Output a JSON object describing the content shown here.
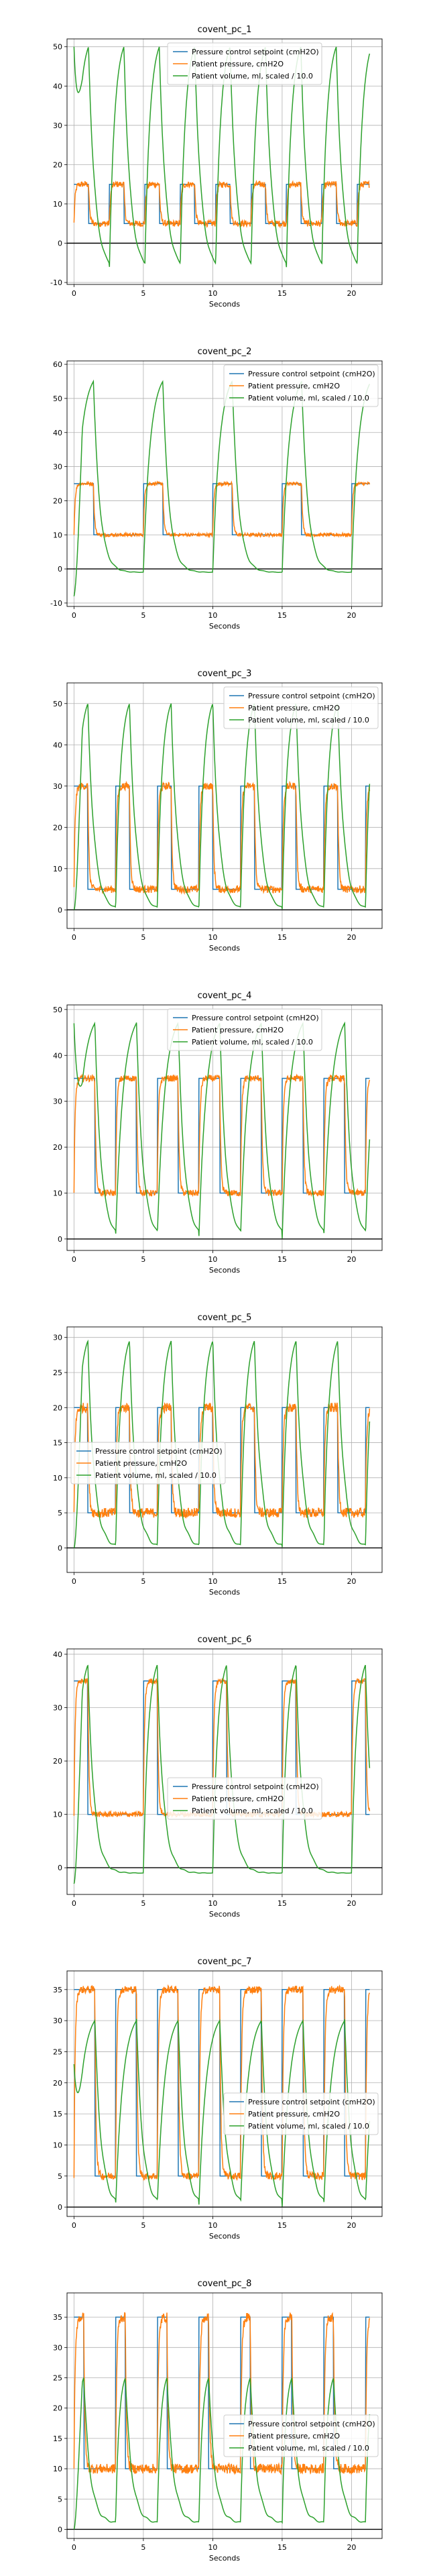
{
  "colors": {
    "setpoint": "#1f77b4",
    "pressure": "#ff7f0e",
    "volume": "#2ca02c"
  },
  "legend_labels": {
    "setpoint": "Pressure control setpoint (cmH2O)",
    "pressure": "Patient pressure, cmH2O",
    "volume": "Patient volume, ml, scaled / 10.0"
  },
  "chart_data": [
    {
      "type": "line",
      "title": "covent_pc_1",
      "xlabel": "Seconds",
      "ylabel": "",
      "xlim": [
        -0.5,
        22.2
      ],
      "ylim": [
        -10.5,
        52
      ],
      "xticks": [
        0,
        5,
        10,
        15,
        20
      ],
      "yticks": [
        -10,
        0,
        10,
        20,
        30,
        40,
        50
      ],
      "grid": true,
      "legend": "top-center",
      "duration": 21.3,
      "period": 2.55,
      "insp": 1.05,
      "peep": 5,
      "pip": 15,
      "vol_base": -7,
      "vol_peak": 50,
      "vol_start": 50,
      "noise": 0.8,
      "series": [
        {
          "key": "setpoint",
          "name": "Pressure control setpoint (cmH2O)"
        },
        {
          "key": "pressure",
          "name": "Patient pressure, cmH2O"
        },
        {
          "key": "volume",
          "name": "Patient volume, ml, scaled / 10.0"
        }
      ]
    },
    {
      "type": "line",
      "title": "covent_pc_2",
      "xlabel": "Seconds",
      "ylabel": "",
      "xlim": [
        -0.5,
        22.2
      ],
      "ylim": [
        -11,
        61
      ],
      "xticks": [
        0,
        5,
        10,
        15,
        20
      ],
      "yticks": [
        -10,
        0,
        10,
        20,
        30,
        40,
        50,
        60
      ],
      "grid": true,
      "legend": "top-right",
      "duration": 21.3,
      "period": 5.0,
      "insp": 1.4,
      "peep": 10,
      "pip": 25,
      "vol_base": -1,
      "vol_peak": 55,
      "vol_start": -8,
      "noise": 0.5,
      "series": [
        {
          "key": "setpoint",
          "name": "Pressure control setpoint (cmH2O)"
        },
        {
          "key": "pressure",
          "name": "Patient pressure, cmH2O"
        },
        {
          "key": "volume",
          "name": "Patient volume, ml, scaled / 10.0"
        }
      ]
    },
    {
      "type": "line",
      "title": "covent_pc_3",
      "xlabel": "Seconds",
      "ylabel": "",
      "xlim": [
        -0.5,
        22.2
      ],
      "ylim": [
        -4.5,
        55
      ],
      "xticks": [
        0,
        5,
        10,
        15,
        20
      ],
      "yticks": [
        0,
        10,
        20,
        30,
        40,
        50
      ],
      "grid": true,
      "legend": "top-right",
      "duration": 21.3,
      "period": 3.0,
      "insp": 1.0,
      "peep": 5,
      "pip": 30,
      "vol_base": 0,
      "vol_peak": 50,
      "vol_start": 0,
      "noise": 0.9,
      "series": [
        {
          "key": "setpoint",
          "name": "Pressure control setpoint (cmH2O)"
        },
        {
          "key": "pressure",
          "name": "Patient pressure, cmH2O"
        },
        {
          "key": "volume",
          "name": "Patient volume, ml, scaled / 10.0"
        }
      ]
    },
    {
      "type": "line",
      "title": "covent_pc_4",
      "xlabel": "Seconds",
      "ylabel": "",
      "xlim": [
        -0.5,
        22.2
      ],
      "ylim": [
        -2.5,
        51
      ],
      "xticks": [
        0,
        5,
        10,
        15,
        20
      ],
      "yticks": [
        0,
        10,
        20,
        30,
        40,
        50
      ],
      "grid": true,
      "legend": "top-center",
      "duration": 21.3,
      "period": 3.0,
      "insp": 1.5,
      "peep": 10,
      "pip": 35,
      "vol_base": 0,
      "vol_peak": 47,
      "vol_start": 47,
      "noise": 0.7,
      "series": [
        {
          "key": "setpoint",
          "name": "Pressure control setpoint (cmH2O)"
        },
        {
          "key": "pressure",
          "name": "Patient pressure, cmH2O"
        },
        {
          "key": "volume",
          "name": "Patient volume, ml, scaled / 10.0"
        }
      ]
    },
    {
      "type": "line",
      "title": "covent_pc_5",
      "xlabel": "Seconds",
      "ylabel": "",
      "xlim": [
        -0.5,
        22.2
      ],
      "ylim": [
        -3.5,
        31.5
      ],
      "xticks": [
        0,
        5,
        10,
        15,
        20
      ],
      "yticks": [
        0,
        5,
        10,
        15,
        20,
        25,
        30
      ],
      "grid": true,
      "legend": "center-left",
      "duration": 21.3,
      "period": 3.0,
      "insp": 1.0,
      "peep": 5,
      "pip": 20,
      "vol_base": 0,
      "vol_peak": 29.5,
      "vol_start": 0,
      "noise": 0.7,
      "series": [
        {
          "key": "setpoint",
          "name": "Pressure control setpoint (cmH2O)"
        },
        {
          "key": "pressure",
          "name": "Patient pressure, cmH2O"
        },
        {
          "key": "volume",
          "name": "Patient volume, ml, scaled / 10.0"
        }
      ]
    },
    {
      "type": "line",
      "title": "covent_pc_6",
      "xlabel": "Seconds",
      "ylabel": "",
      "xlim": [
        -0.5,
        22.2
      ],
      "ylim": [
        -5,
        41
      ],
      "xticks": [
        0,
        5,
        10,
        15,
        20
      ],
      "yticks": [
        0,
        10,
        20,
        30,
        40
      ],
      "grid": true,
      "legend": "center",
      "duration": 21.3,
      "period": 5.0,
      "insp": 1.0,
      "peep": 10,
      "pip": 35,
      "vol_base": -1,
      "vol_peak": 38,
      "vol_start": -3,
      "noise": 0.5,
      "series": [
        {
          "key": "setpoint",
          "name": "Pressure control setpoint (cmH2O)"
        },
        {
          "key": "pressure",
          "name": "Patient pressure, cmH2O"
        },
        {
          "key": "volume",
          "name": "Patient volume, ml, scaled / 10.0"
        }
      ]
    },
    {
      "type": "line",
      "title": "covent_pc_7",
      "xlabel": "Seconds",
      "ylabel": "",
      "xlim": [
        -0.5,
        22.2
      ],
      "ylim": [
        -1.5,
        38
      ],
      "xticks": [
        0,
        5,
        10,
        15,
        20
      ],
      "yticks": [
        0,
        5,
        10,
        15,
        20,
        25,
        30,
        35
      ],
      "grid": true,
      "legend": "center-right",
      "duration": 21.3,
      "period": 3.0,
      "insp": 1.5,
      "peep": 5,
      "pip": 35,
      "vol_base": 0,
      "vol_peak": 30,
      "vol_start": 23,
      "noise": 0.6,
      "series": [
        {
          "key": "setpoint",
          "name": "Pressure control setpoint (cmH2O)"
        },
        {
          "key": "pressure",
          "name": "Patient pressure, cmH2O"
        },
        {
          "key": "volume",
          "name": "Patient volume, ml, scaled / 10.0"
        }
      ]
    },
    {
      "type": "line",
      "title": "covent_pc_8",
      "xlabel": "Seconds",
      "ylabel": "",
      "xlim": [
        -0.5,
        22.2
      ],
      "ylim": [
        -1.5,
        39
      ],
      "xticks": [
        0,
        5,
        10,
        15,
        20
      ],
      "yticks": [
        0,
        5,
        10,
        15,
        20,
        25,
        30,
        35
      ],
      "grid": true,
      "legend": "center-right",
      "duration": 21.3,
      "period": 3.0,
      "insp": 0.7,
      "peep": 10,
      "pip": 35,
      "vol_base": 1,
      "vol_peak": 25,
      "vol_start": 0,
      "noise": 0.8,
      "series": [
        {
          "key": "setpoint",
          "name": "Pressure control setpoint (cmH2O)"
        },
        {
          "key": "pressure",
          "name": "Patient pressure, cmH2O"
        },
        {
          "key": "volume",
          "name": "Patient volume, ml, scaled / 10.0"
        }
      ]
    }
  ]
}
